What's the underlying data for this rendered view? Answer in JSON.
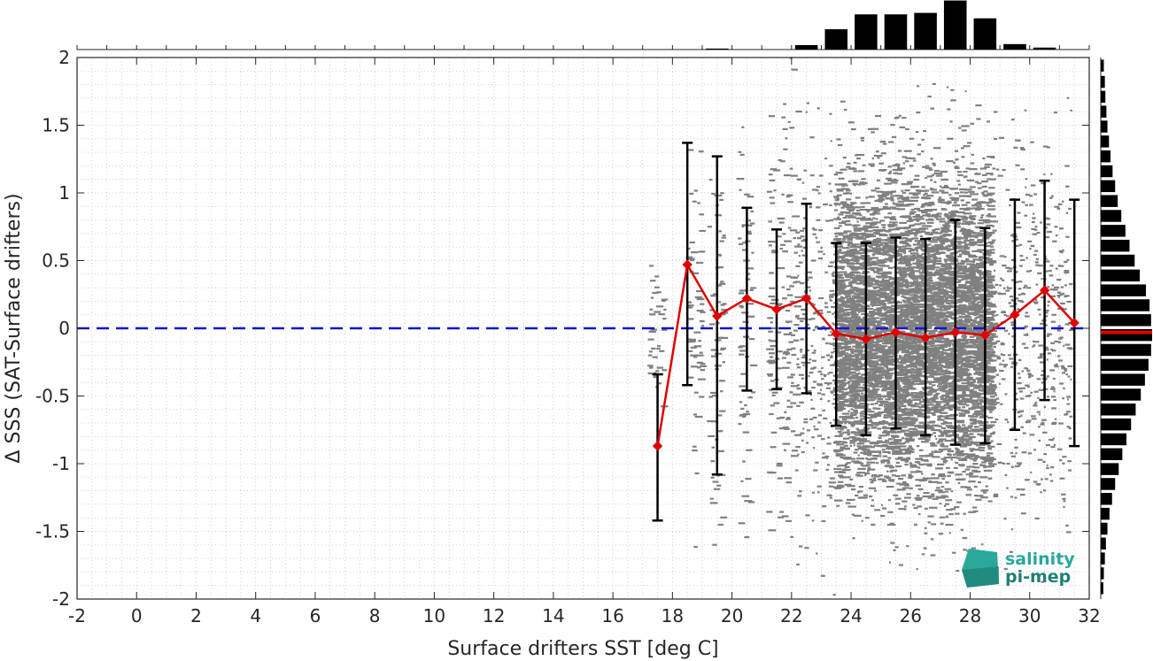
{
  "chart_data": {
    "type": "scatter",
    "title": "",
    "xlabel": "Surface drifters SST [deg C]",
    "ylabel": "Δ SSS (SAT-Surface drifters)",
    "xlim": [
      -2,
      32
    ],
    "ylim": [
      -2,
      2
    ],
    "xticks": [
      "-2",
      "0",
      "2",
      "4",
      "6",
      "8",
      "10",
      "12",
      "14",
      "16",
      "18",
      "20",
      "22",
      "24",
      "26",
      "28",
      "30",
      "32"
    ],
    "yticks": [
      "2",
      "1.5",
      "1",
      "0.5",
      "0",
      "-0.5",
      "-1",
      "-1.5",
      "-2"
    ],
    "grid": true,
    "zero_line": {
      "y": 0,
      "style": "dashed",
      "color": "#1414d2"
    },
    "binned_mean": {
      "color": "#e00000",
      "x": [
        17.5,
        18.5,
        19.5,
        20.5,
        21.5,
        22.5,
        23.5,
        24.5,
        25.5,
        26.5,
        27.5,
        28.5,
        29.5,
        30.5,
        31.5
      ],
      "y": [
        -0.87,
        0.47,
        0.09,
        0.22,
        0.14,
        0.22,
        -0.04,
        -0.08,
        -0.03,
        -0.07,
        -0.03,
        -0.05,
        0.1,
        0.28,
        0.04
      ],
      "err_low": [
        -1.42,
        -0.42,
        -1.08,
        -0.46,
        -0.45,
        -0.48,
        -0.72,
        -0.79,
        -0.74,
        -0.79,
        -0.86,
        -0.85,
        -0.75,
        -0.53,
        -0.87
      ],
      "err_high": [
        -0.34,
        1.37,
        1.27,
        0.89,
        0.73,
        0.92,
        0.63,
        0.63,
        0.67,
        0.66,
        0.8,
        0.74,
        0.95,
        1.09,
        0.95
      ]
    },
    "scatter_cloud": {
      "color": "#808080",
      "x_range": [
        17,
        31.5
      ],
      "y_range": [
        -2,
        2
      ],
      "densest_x": [
        23.5,
        28.8
      ]
    },
    "top_histogram": {
      "bin_centers": [
        19.5,
        22.5,
        23.5,
        24.5,
        25.5,
        26.5,
        27.5,
        28.5,
        29.5,
        30.5
      ],
      "counts": [
        0.02,
        0.09,
        0.41,
        0.71,
        0.71,
        0.74,
        0.99,
        0.63,
        0.11,
        0.04
      ]
    },
    "right_histogram": {
      "mean_marker": {
        "y": -0.03,
        "color": "#e00000"
      },
      "bin_centers": [
        1.94,
        1.82,
        1.71,
        1.6,
        1.49,
        1.38,
        1.27,
        1.16,
        1.05,
        0.94,
        0.83,
        0.72,
        0.61,
        0.5,
        0.39,
        0.28,
        0.17,
        0.06,
        -0.05,
        -0.16,
        -0.27,
        -0.38,
        -0.49,
        -0.6,
        -0.71,
        -0.82,
        -0.93,
        -1.04,
        -1.15,
        -1.26,
        -1.37,
        -1.48,
        -1.59,
        -1.7,
        -1.81,
        -1.92
      ],
      "counts": [
        0.06,
        0.08,
        0.09,
        0.11,
        0.13,
        0.16,
        0.19,
        0.23,
        0.28,
        0.33,
        0.4,
        0.48,
        0.56,
        0.66,
        0.76,
        0.88,
        0.95,
        0.98,
        1.0,
        0.98,
        0.93,
        0.86,
        0.78,
        0.68,
        0.59,
        0.5,
        0.42,
        0.35,
        0.28,
        0.22,
        0.17,
        0.13,
        0.1,
        0.08,
        0.06,
        0.05
      ]
    }
  },
  "logo": {
    "line1": "salinity",
    "line2": "pi-mep",
    "color1": "#2aa89a",
    "color2": "#1f7f74"
  }
}
